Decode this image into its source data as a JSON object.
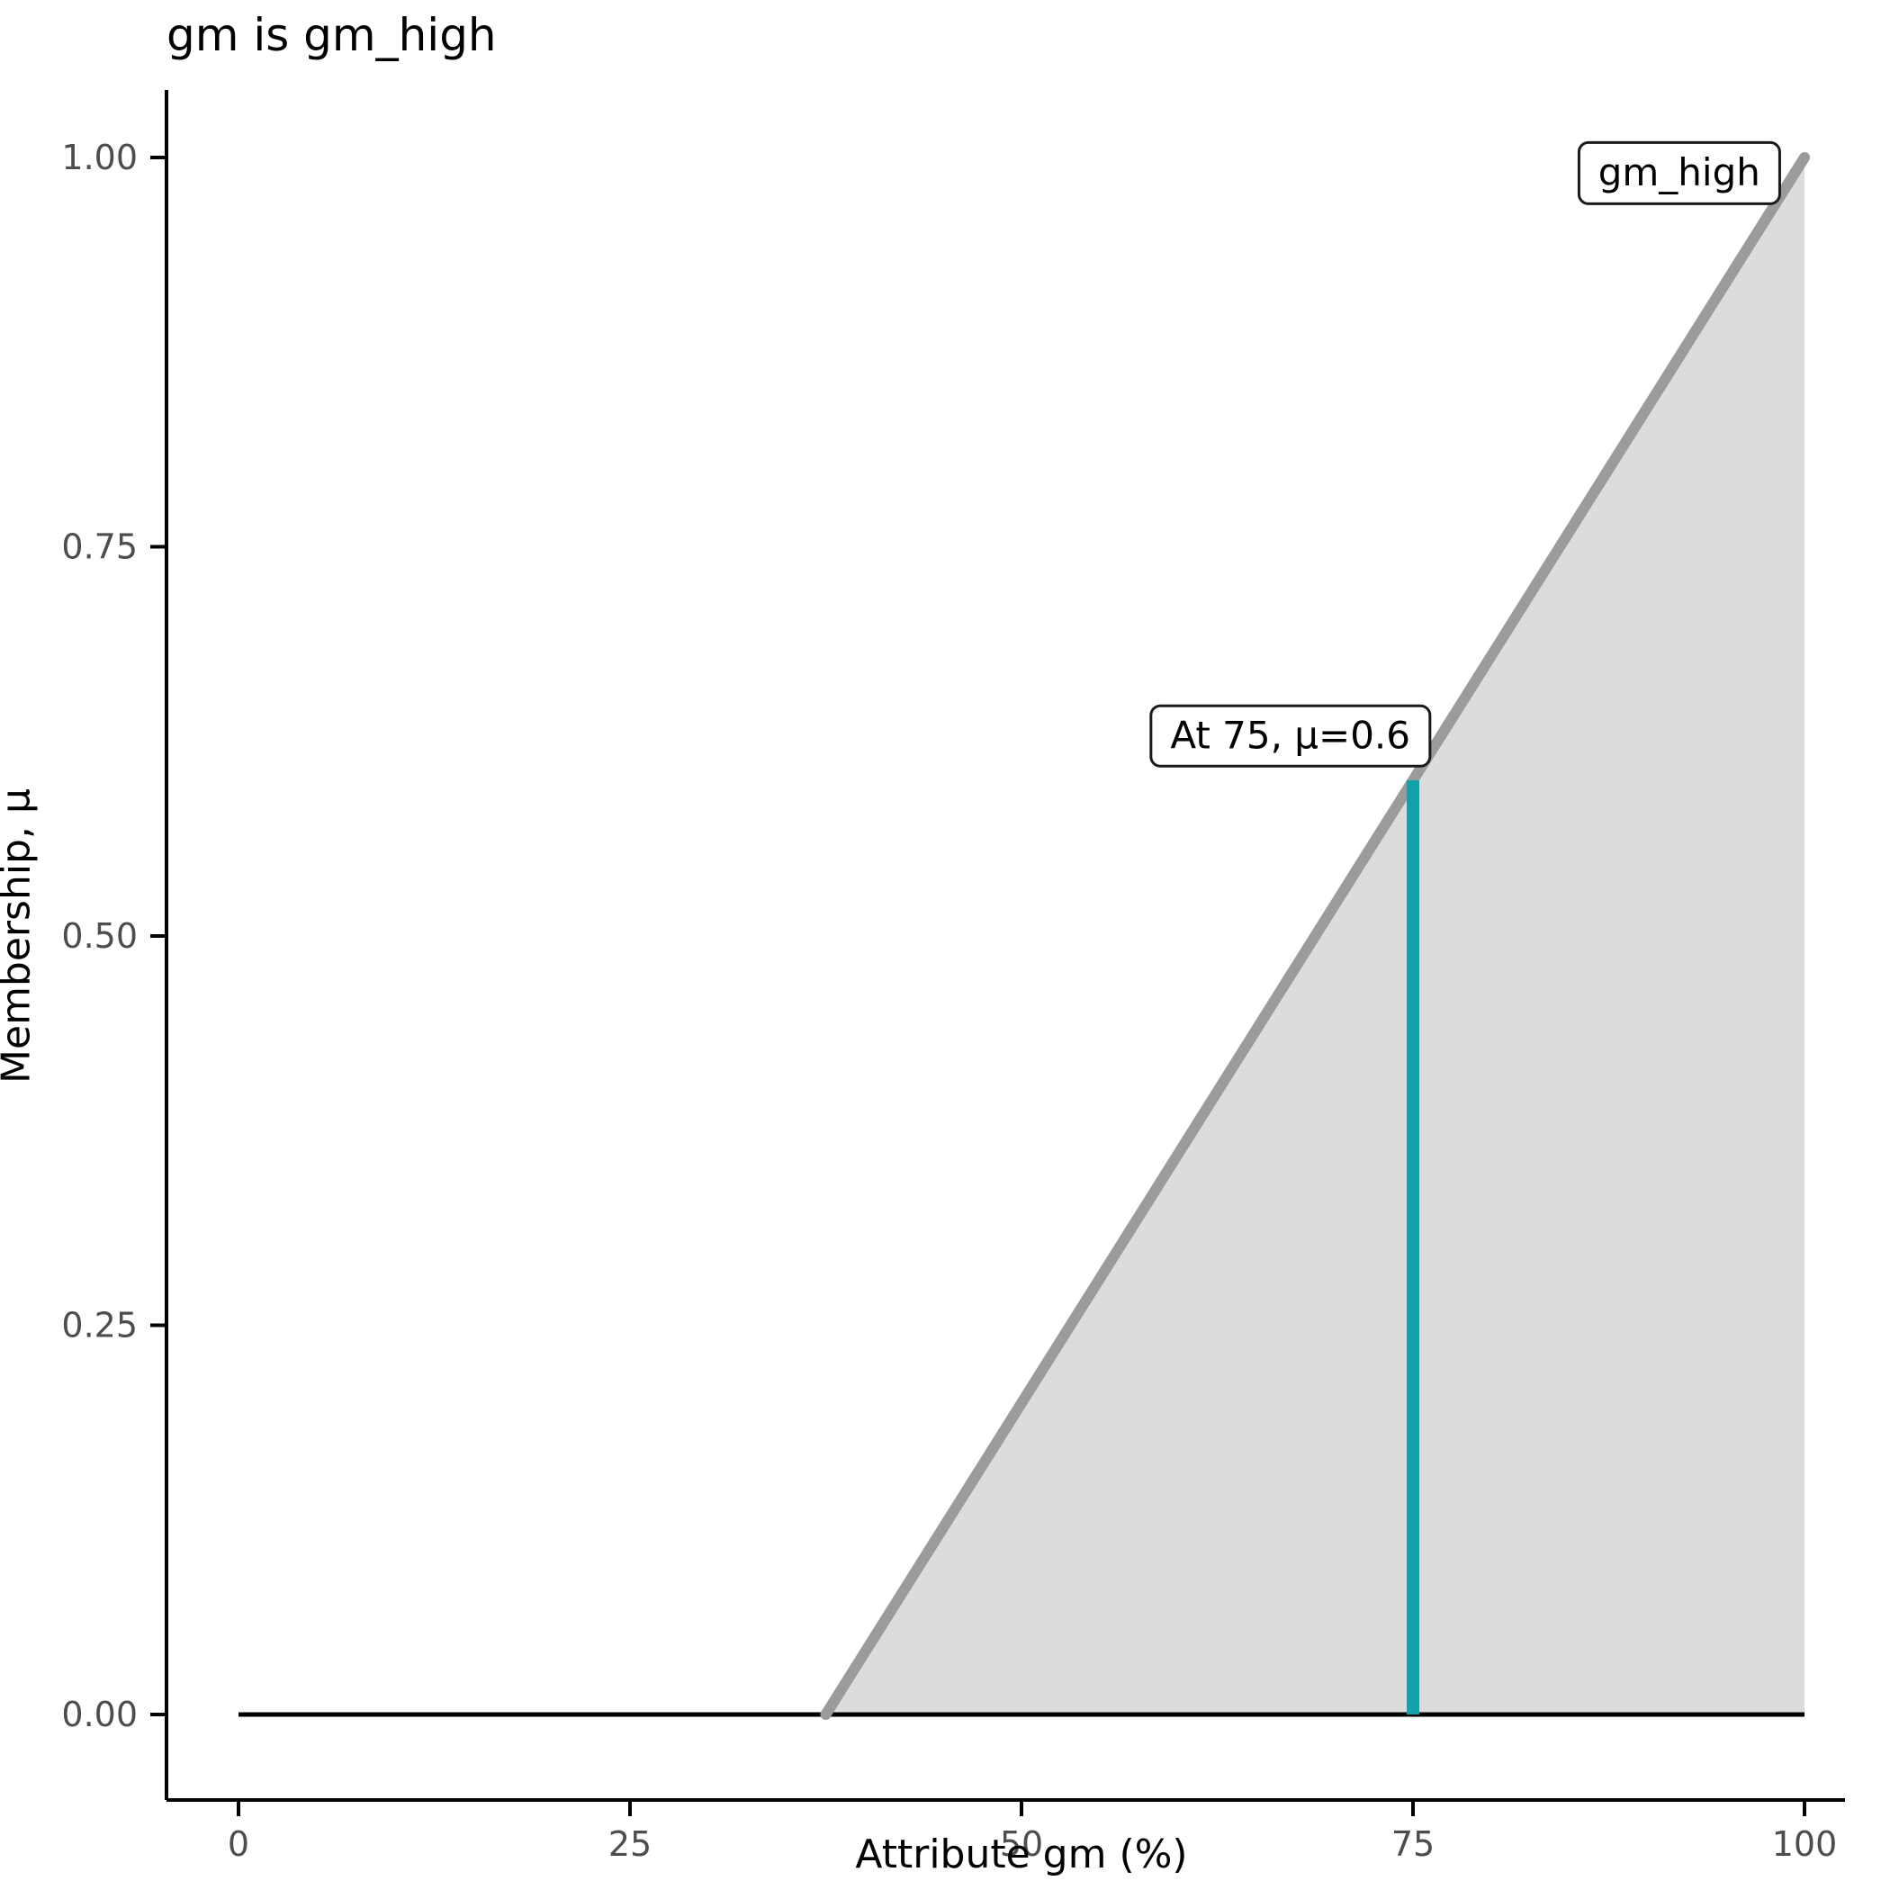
{
  "chart_data": {
    "type": "area",
    "title": "gm is gm_high",
    "xlabel": "Attribute gm (%)",
    "ylabel": "Membership, μ",
    "xlim": [
      0,
      100
    ],
    "ylim": [
      0,
      1
    ],
    "x_ticks": [
      0,
      25,
      50,
      75,
      100
    ],
    "y_ticks": [
      {
        "value": 0.0,
        "label": "0.00"
      },
      {
        "value": 0.25,
        "label": "0.25"
      },
      {
        "value": 0.5,
        "label": "0.50"
      },
      {
        "value": 0.75,
        "label": "0.75"
      },
      {
        "value": 1.0,
        "label": "1.00"
      }
    ],
    "grid": "off",
    "membership_function": {
      "name": "gm_high",
      "points": [
        {
          "x": 37.5,
          "mu": 0.0
        },
        {
          "x": 100,
          "mu": 1.0
        }
      ]
    },
    "baseline": {
      "points": [
        {
          "x": 0,
          "mu": 0.0
        },
        {
          "x": 100,
          "mu": 0.0
        }
      ]
    },
    "marker": {
      "x": 75,
      "mu": 0.6,
      "label": "At 75, μ=0.6"
    },
    "series_label": {
      "text": "gm_high",
      "x": 92,
      "mu": 0.99
    },
    "colors": {
      "membership_line": "#9B9B9B",
      "membership_fill": "#DCDCDC",
      "marker_line": "#12A2A7",
      "baseline": "#000000",
      "axis": "#000000",
      "tick_text": "#4D4D4D"
    }
  }
}
